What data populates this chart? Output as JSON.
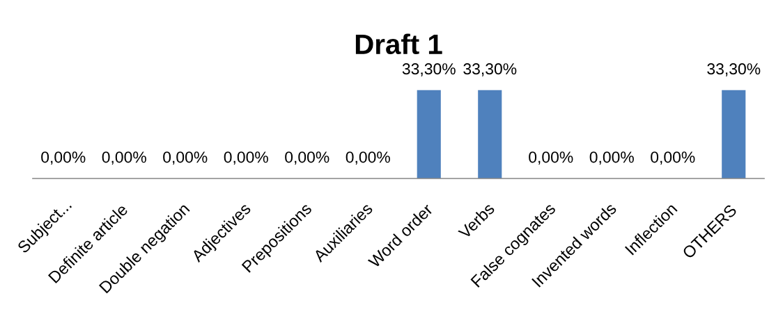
{
  "chart_data": {
    "type": "bar",
    "title": "Draft 1",
    "categories": [
      "Subject...",
      "Definite article",
      "Double negation",
      "Adjectives",
      "Prepositions",
      "Auxiliaries",
      "Word order",
      "Verbs",
      "False cognates",
      "Invented words",
      "Inflection",
      "OTHERS"
    ],
    "values": [
      0,
      0,
      0,
      0,
      0,
      0,
      33.3,
      33.3,
      0,
      0,
      0,
      33.3
    ],
    "color": "#4f81bd",
    "value_labels": [
      "0,00%",
      "0,00%",
      "0,00%",
      "0,00%",
      "0,00%",
      "0,00%",
      "33,30%",
      "33,30%",
      "0,00%",
      "0,00%",
      "0,00%",
      "33,30%"
    ],
    "tick_labels": "x"
  }
}
